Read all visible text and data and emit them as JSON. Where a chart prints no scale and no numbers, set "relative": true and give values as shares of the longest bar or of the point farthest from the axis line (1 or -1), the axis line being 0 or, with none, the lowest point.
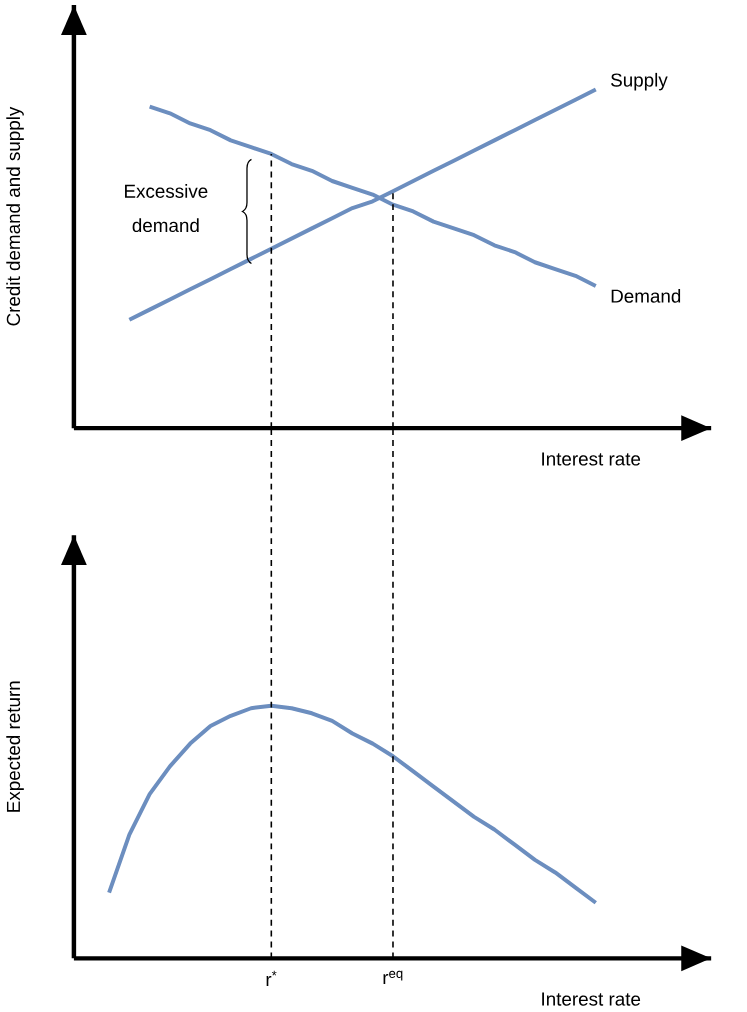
{
  "chart_data": [
    {
      "type": "line",
      "ylabel": "Credit demand and supply",
      "xlabel": "Interest rate",
      "relative": true,
      "tick_labels": false,
      "grid": false,
      "marker": "none",
      "line_style": "solid",
      "categories": [
        null,
        null,
        null,
        null,
        null,
        null,
        null,
        null,
        "r$^{*}$",
        null,
        null,
        null,
        null,
        null,
        "r$^{eq}$",
        null,
        null,
        null,
        null,
        null,
        null,
        null,
        null,
        null,
        null
      ],
      "series": [
        {
          "name": "Supply",
          "color": "#6c8ebf",
          "values": [
            null,
            0.32,
            0.35,
            0.38,
            0.41,
            0.44,
            0.47,
            0.5,
            0.53,
            0.56,
            0.59,
            0.62,
            0.65,
            0.67,
            0.7,
            0.73,
            0.76,
            0.79,
            0.82,
            0.85,
            0.88,
            0.91,
            0.94,
            0.97,
            1.0
          ]
        },
        {
          "name": "Demand",
          "color": "#6c8ebf",
          "values": [
            null,
            null,
            0.95,
            0.93,
            0.9,
            0.88,
            0.85,
            0.83,
            0.81,
            0.78,
            0.76,
            0.73,
            0.71,
            0.69,
            0.66,
            0.64,
            0.61,
            0.59,
            0.57,
            0.54,
            0.52,
            0.49,
            0.47,
            0.45,
            0.42
          ]
        }
      ],
      "ref_lines": [
        {
          "axis": "x",
          "value": "r$^{*}$",
          "line_style": "dashed"
        },
        {
          "axis": "x",
          "value": "r$^{eq}$",
          "line_style": "dashed"
        }
      ],
      "annotations": [
        "Excessive demand"
      ]
    },
    {
      "type": "line",
      "ylabel": "Expected return",
      "xlabel": "Interest rate",
      "relative": true,
      "grid": false,
      "marker": "none",
      "line_style": "solid",
      "categories": [
        null,
        null,
        null,
        null,
        null,
        null,
        null,
        null,
        "r$^{*}$",
        null,
        null,
        null,
        null,
        null,
        "r$^{eq}$",
        null,
        null,
        null,
        null,
        null,
        null,
        null,
        null,
        null,
        null
      ],
      "series": [
        {
          "color": "#6c8ebf",
          "values": [
            0.26,
            0.49,
            0.65,
            0.76,
            0.85,
            0.92,
            0.96,
            0.99,
            1.0,
            0.99,
            0.97,
            0.94,
            0.89,
            0.85,
            0.8,
            0.74,
            0.68,
            0.62,
            0.56,
            0.51,
            0.45,
            0.39,
            0.34,
            0.28,
            0.22
          ]
        }
      ],
      "ref_lines": [
        {
          "axis": "x",
          "value": "r$^{*}$",
          "line_style": "dashed"
        },
        {
          "axis": "x",
          "value": "r$^{eq}$",
          "line_style": "dashed"
        }
      ]
    }
  ]
}
